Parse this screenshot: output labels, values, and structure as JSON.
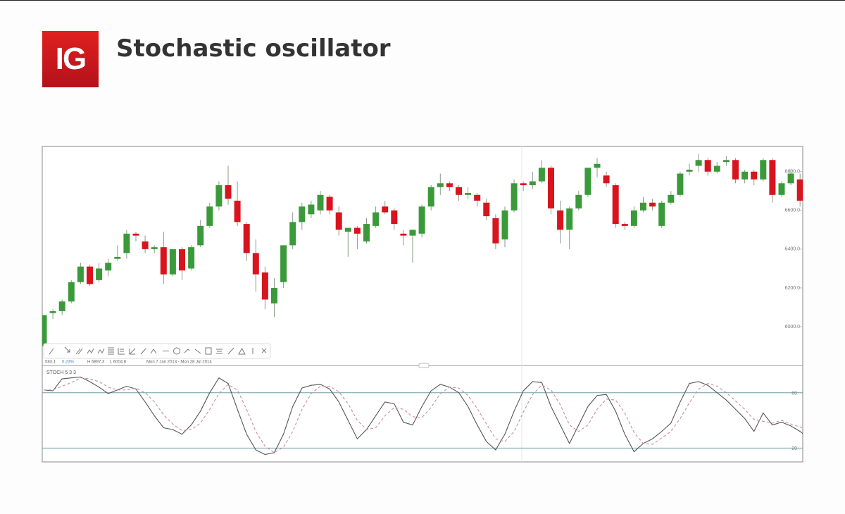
{
  "header": {
    "logo": "IG",
    "title": "Stochastic oscillator"
  },
  "chart_data": [
    {
      "type": "candlestick",
      "up_color": "#3a9a3a",
      "down_color": "#d8141e",
      "wick_color": "#8a9a8a",
      "open": [
        5900,
        6070,
        6080,
        6130,
        6230,
        6310,
        6240,
        6290,
        6350,
        6380,
        6480,
        6440,
        6400,
        6410,
        6270,
        6400,
        6300,
        6420,
        6520,
        6620,
        6730,
        6650,
        6530,
        6380,
        6280,
        6120,
        6230,
        6420,
        6540,
        6580,
        6600,
        6670,
        6590,
        6490,
        6510,
        6440,
        6520,
        6620,
        6600,
        6480,
        6470,
        6480,
        6620,
        6720,
        6740,
        6720,
        6680,
        6680,
        6640,
        6560,
        6450,
        6600,
        6740,
        6730,
        6750,
        6820,
        6600,
        6500,
        6610,
        6680,
        6820,
        6780,
        6730,
        6530,
        6520,
        6600,
        6640,
        6520,
        6640,
        6680,
        6800,
        6830,
        6860,
        6800,
        6850,
        6860,
        6760,
        6800,
        6760,
        6860,
        6680,
        6740,
        6760,
        6650
      ],
      "high": [
        6060,
        6090,
        6140,
        6240,
        6330,
        6320,
        6330,
        6350,
        6420,
        6500,
        6490,
        6470,
        6420,
        6490,
        6400,
        6410,
        6420,
        6550,
        6640,
        6750,
        6830,
        6750,
        6540,
        6450,
        6310,
        6250,
        6420,
        6590,
        6640,
        6650,
        6700,
        6680,
        6620,
        6510,
        6520,
        6560,
        6620,
        6650,
        6610,
        6500,
        6500,
        6630,
        6730,
        6790,
        6750,
        6730,
        6720,
        6690,
        6660,
        6580,
        6620,
        6760,
        6750,
        6800,
        6860,
        6830,
        6650,
        6620,
        6700,
        6820,
        6870,
        6800,
        6740,
        6540,
        6620,
        6670,
        6660,
        6650,
        6700,
        6800,
        6840,
        6890,
        6870,
        6850,
        6880,
        6870,
        6810,
        6810,
        6870,
        6870,
        6750,
        6810,
        6790,
        6700
      ],
      "low": [
        5880,
        6040,
        6060,
        6120,
        6220,
        6210,
        6230,
        6260,
        6340,
        6350,
        6440,
        6380,
        6380,
        6220,
        6260,
        6240,
        6290,
        6410,
        6510,
        6600,
        6630,
        6520,
        6340,
        6180,
        6090,
        6050,
        6200,
        6400,
        6500,
        6560,
        6580,
        6580,
        6470,
        6360,
        6400,
        6430,
        6510,
        6580,
        6500,
        6420,
        6330,
        6460,
        6600,
        6680,
        6700,
        6650,
        6660,
        6620,
        6550,
        6400,
        6410,
        6590,
        6700,
        6710,
        6740,
        6580,
        6430,
        6400,
        6600,
        6670,
        6770,
        6720,
        6510,
        6500,
        6510,
        6590,
        6600,
        6510,
        6630,
        6670,
        6780,
        6800,
        6780,
        6790,
        6830,
        6740,
        6740,
        6730,
        6750,
        6640,
        6670,
        6730,
        6620,
        6580
      ],
      "close": [
        6060,
        6080,
        6130,
        6230,
        6310,
        6220,
        6300,
        6330,
        6360,
        6480,
        6470,
        6400,
        6410,
        6270,
        6400,
        6290,
        6410,
        6520,
        6620,
        6730,
        6660,
        6540,
        6380,
        6270,
        6140,
        6200,
        6420,
        6540,
        6620,
        6630,
        6680,
        6600,
        6500,
        6510,
        6480,
        6530,
        6590,
        6590,
        6530,
        6470,
        6500,
        6620,
        6720,
        6740,
        6720,
        6680,
        6690,
        6650,
        6570,
        6430,
        6600,
        6740,
        6730,
        6750,
        6820,
        6610,
        6500,
        6610,
        6680,
        6820,
        6840,
        6740,
        6530,
        6520,
        6600,
        6640,
        6620,
        6640,
        6680,
        6790,
        6810,
        6860,
        6800,
        6830,
        6860,
        6760,
        6800,
        6760,
        6860,
        6680,
        6740,
        6790,
        6650,
        6600
      ],
      "ylim": [
        5800,
        6930
      ],
      "yticks": [
        {
          "value": 6000,
          "label": "6000.0"
        },
        {
          "value": 6200,
          "label": "6200.0"
        },
        {
          "value": 6400,
          "label": "6400.0"
        },
        {
          "value": 6600,
          "label": "6600.0"
        },
        {
          "value": 6800,
          "label": "6800.0"
        }
      ],
      "annotations": [
        "583.1",
        "0.23%",
        "H 6897.3",
        "L 6004.8",
        "Mon 7 Jan 2013 - Mon 28 Jul 2014"
      ],
      "grid": false
    },
    {
      "type": "line",
      "title": "STOCH  5  3  3",
      "series": [
        {
          "color": "#555555",
          "dashed": false,
          "values": [
            83,
            82,
            95,
            96,
            97,
            92,
            86,
            79,
            83,
            87,
            84,
            70,
            55,
            42,
            40,
            35,
            45,
            60,
            80,
            96,
            90,
            62,
            35,
            18,
            13,
            15,
            35,
            65,
            85,
            88,
            89,
            84,
            70,
            50,
            30,
            40,
            55,
            70,
            68,
            48,
            45,
            65,
            82,
            89,
            86,
            80,
            65,
            45,
            27,
            18,
            35,
            60,
            82,
            92,
            91,
            65,
            45,
            25,
            45,
            65,
            77,
            78,
            60,
            35,
            16,
            25,
            30,
            38,
            47,
            70,
            90,
            92,
            88,
            80,
            72,
            62,
            52,
            38,
            58,
            45,
            48,
            44,
            38,
            30
          ]
        },
        {
          "color": "#c98f9a",
          "dashed": true,
          "values": [
            83,
            83,
            87,
            91,
            96,
            95,
            92,
            86,
            83,
            83,
            85,
            80,
            70,
            56,
            46,
            39,
            40,
            47,
            62,
            79,
            89,
            83,
            62,
            38,
            22,
            15,
            21,
            38,
            62,
            79,
            87,
            87,
            81,
            68,
            50,
            40,
            42,
            55,
            64,
            62,
            54,
            53,
            64,
            79,
            86,
            85,
            77,
            63,
            46,
            30,
            27,
            38,
            59,
            78,
            88,
            83,
            67,
            45,
            38,
            45,
            62,
            73,
            72,
            58,
            37,
            25,
            24,
            31,
            38,
            52,
            69,
            84,
            90,
            87,
            80,
            71,
            62,
            51,
            49,
            47,
            50,
            46,
            43,
            37
          ]
        }
      ],
      "level_color": "#6f9ea3",
      "ylim": [
        5,
        108
      ],
      "yticks": [
        20,
        80
      ]
    }
  ]
}
